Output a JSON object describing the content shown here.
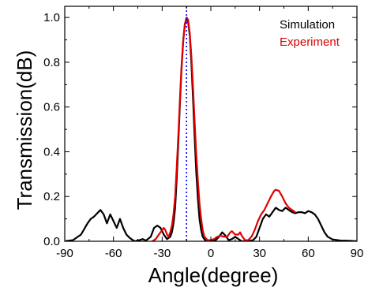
{
  "chart_data": {
    "type": "line",
    "title": "",
    "xlabel": "Angle(degree)",
    "ylabel": "Transmission(dB)",
    "xlim": [
      -90,
      90
    ],
    "ylim": [
      0,
      1.05
    ],
    "xticks": [
      -90,
      -60,
      -30,
      0,
      30,
      60,
      90
    ],
    "yticks": [
      0.0,
      0.2,
      0.4,
      0.6,
      0.8,
      1.0
    ],
    "ytick_labels": [
      "0.0",
      "0.2",
      "0.4",
      "0.6",
      "0.8",
      "1.0"
    ],
    "grid": false,
    "legend_position": "top-right",
    "reference_line": {
      "x": -15,
      "style": "dotted",
      "color": "#0000ff"
    },
    "series": [
      {
        "name": "Simulation",
        "color": "#000000",
        "points": [
          [
            -90,
            0.0
          ],
          [
            -85,
            0.005
          ],
          [
            -80,
            0.03
          ],
          [
            -76,
            0.08
          ],
          [
            -74,
            0.1
          ],
          [
            -72,
            0.11
          ],
          [
            -70,
            0.125
          ],
          [
            -68,
            0.14
          ],
          [
            -66,
            0.12
          ],
          [
            -64,
            0.08
          ],
          [
            -62,
            0.12
          ],
          [
            -60,
            0.09
          ],
          [
            -58,
            0.06
          ],
          [
            -56,
            0.1
          ],
          [
            -54,
            0.06
          ],
          [
            -52,
            0.03
          ],
          [
            -50,
            0.015
          ],
          [
            -47,
            0.0
          ],
          [
            -44,
            0.005
          ],
          [
            -42,
            0.01
          ],
          [
            -40,
            0.003
          ],
          [
            -37,
            0.02
          ],
          [
            -35,
            0.06
          ],
          [
            -33,
            0.07
          ],
          [
            -31,
            0.06
          ],
          [
            -29,
            0.03
          ],
          [
            -27,
            0.01
          ],
          [
            -25,
            0.02
          ],
          [
            -24,
            0.04
          ],
          [
            -23,
            0.08
          ],
          [
            -22,
            0.15
          ],
          [
            -21,
            0.28
          ],
          [
            -20,
            0.45
          ],
          [
            -19,
            0.62
          ],
          [
            -18,
            0.78
          ],
          [
            -17,
            0.9
          ],
          [
            -16,
            0.97
          ],
          [
            -15,
            0.995
          ],
          [
            -14,
            0.98
          ],
          [
            -13,
            0.92
          ],
          [
            -12,
            0.8
          ],
          [
            -11,
            0.64
          ],
          [
            -10,
            0.47
          ],
          [
            -9,
            0.31
          ],
          [
            -8,
            0.19
          ],
          [
            -7,
            0.1
          ],
          [
            -6,
            0.05
          ],
          [
            -5,
            0.02
          ],
          [
            -3,
            0.0
          ],
          [
            0,
            0.0
          ],
          [
            3,
            0.005
          ],
          [
            5,
            0.02
          ],
          [
            7,
            0.04
          ],
          [
            9,
            0.025
          ],
          [
            11,
            0.005
          ],
          [
            13,
            0.01
          ],
          [
            15,
            0.02
          ],
          [
            17,
            0.01
          ],
          [
            19,
            0.0
          ],
          [
            22,
            0.0
          ],
          [
            26,
            0.005
          ],
          [
            28,
            0.02
          ],
          [
            30,
            0.06
          ],
          [
            32,
            0.1
          ],
          [
            34,
            0.12
          ],
          [
            36,
            0.11
          ],
          [
            38,
            0.13
          ],
          [
            40,
            0.15
          ],
          [
            42,
            0.14
          ],
          [
            44,
            0.135
          ],
          [
            46,
            0.15
          ],
          [
            48,
            0.14
          ],
          [
            50,
            0.13
          ],
          [
            52,
            0.125
          ],
          [
            54,
            0.13
          ],
          [
            56,
            0.13
          ],
          [
            58,
            0.125
          ],
          [
            60,
            0.135
          ],
          [
            62,
            0.13
          ],
          [
            64,
            0.12
          ],
          [
            66,
            0.1
          ],
          [
            68,
            0.07
          ],
          [
            70,
            0.04
          ],
          [
            72,
            0.02
          ],
          [
            75,
            0.008
          ],
          [
            80,
            0.003
          ],
          [
            85,
            0.002
          ],
          [
            90,
            0.0
          ]
        ]
      },
      {
        "name": "Experiment",
        "color": "#e00000",
        "points": [
          [
            -36,
            0.0
          ],
          [
            -34,
            0.01
          ],
          [
            -32,
            0.03
          ],
          [
            -30,
            0.05
          ],
          [
            -29,
            0.06
          ],
          [
            -28,
            0.05
          ],
          [
            -27,
            0.03
          ],
          [
            -26,
            0.02
          ],
          [
            -25,
            0.04
          ],
          [
            -24,
            0.07
          ],
          [
            -23,
            0.12
          ],
          [
            -22,
            0.2
          ],
          [
            -21,
            0.33
          ],
          [
            -20,
            0.48
          ],
          [
            -19,
            0.64
          ],
          [
            -18,
            0.79
          ],
          [
            -17,
            0.9
          ],
          [
            -16,
            0.97
          ],
          [
            -15,
            1.0
          ],
          [
            -14,
            0.99
          ],
          [
            -13,
            0.93
          ],
          [
            -12,
            0.83
          ],
          [
            -11,
            0.69
          ],
          [
            -10,
            0.54
          ],
          [
            -9,
            0.39
          ],
          [
            -8,
            0.27
          ],
          [
            -7,
            0.17
          ],
          [
            -6,
            0.1
          ],
          [
            -5,
            0.05
          ],
          [
            -4,
            0.02
          ],
          [
            -2,
            0.005
          ],
          [
            0,
            0.005
          ],
          [
            2,
            0.01
          ],
          [
            4,
            0.02
          ],
          [
            6,
            0.025
          ],
          [
            8,
            0.02
          ],
          [
            10,
            0.02
          ],
          [
            12,
            0.04
          ],
          [
            13,
            0.045
          ],
          [
            15,
            0.03
          ],
          [
            17,
            0.03
          ],
          [
            18,
            0.04
          ],
          [
            19,
            0.025
          ],
          [
            21,
            0.005
          ],
          [
            23,
            0.005
          ],
          [
            25,
            0.02
          ],
          [
            27,
            0.05
          ],
          [
            29,
            0.09
          ],
          [
            31,
            0.12
          ],
          [
            33,
            0.14
          ],
          [
            35,
            0.17
          ],
          [
            37,
            0.2
          ],
          [
            39,
            0.225
          ],
          [
            40,
            0.23
          ],
          [
            42,
            0.225
          ],
          [
            44,
            0.2
          ],
          [
            46,
            0.17
          ],
          [
            48,
            0.15
          ],
          [
            50,
            0.14
          ],
          [
            52,
            0.13
          ]
        ]
      }
    ]
  }
}
